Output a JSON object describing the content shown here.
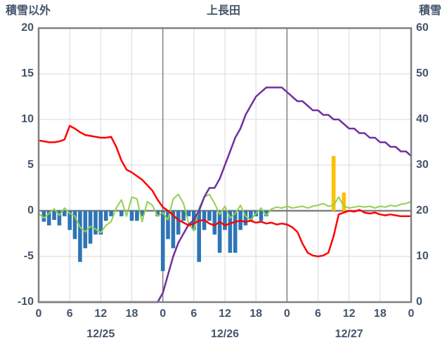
{
  "header": {
    "left_axis_title": "積雪以外",
    "chart_title": "上長田",
    "right_axis_title": "積雪"
  },
  "chart_data": {
    "type": "combo-bar-line",
    "title": "上長田",
    "hours_total": 72,
    "x_tick_step_hours": 6,
    "x_tick_label_rule": "hour-of-day (0,6,12,18)",
    "date_labels": [
      "12/25",
      "12/26",
      "12/27"
    ],
    "left_axis": {
      "title": "積雪以外",
      "min": -10,
      "max": 20,
      "step": 5,
      "tick_labels": [
        "20",
        "15",
        "10",
        "5",
        "0",
        "-5",
        "-10"
      ]
    },
    "right_axis": {
      "title": "積雪",
      "min": 0,
      "max": 60,
      "step": 10,
      "tick_labels": [
        "60",
        "50",
        "40",
        "30",
        "20",
        "10",
        "0"
      ]
    },
    "grid": {
      "minor_color": "#D9D9D9",
      "major_color": "#808080",
      "zero_line_color": "#808080",
      "border_color": "#808080",
      "text_color": "#44546A"
    },
    "series": [
      {
        "name": "blue_bars",
        "type": "bar",
        "axis": "left",
        "color": "#2E75B6",
        "values": [
          0,
          -1.2,
          -1.6,
          -1.0,
          -1.6,
          -0.6,
          -2.1,
          -3.1,
          -5.6,
          -4.1,
          -3.6,
          -2.6,
          -2.6,
          -1.1,
          -0.6,
          0,
          -0.6,
          0,
          -1.1,
          -1.1,
          -0.6,
          0,
          0,
          -0.6,
          -6.6,
          -3.1,
          -4.1,
          -2.6,
          -1.1,
          -0.6,
          -2.1,
          -5.6,
          -2.1,
          -1.1,
          -2.6,
          -4.6,
          -2.1,
          -4.6,
          -4.6,
          -2.1,
          -1.6,
          -1.1,
          -0.6,
          -1.1,
          -0.6,
          0,
          0,
          0,
          0,
          0,
          0,
          0,
          0,
          0,
          0,
          0,
          0,
          0,
          0,
          0,
          0,
          0,
          0,
          0,
          0,
          0,
          0,
          0,
          0,
          0,
          0,
          0,
          0
        ]
      },
      {
        "name": "yellow_bars",
        "type": "bar",
        "axis": "left",
        "color": "#FFC000",
        "values": [
          0,
          0,
          0,
          0,
          0,
          0,
          0,
          0,
          0,
          0,
          0,
          0,
          0,
          0,
          0,
          0,
          0,
          0,
          0,
          0,
          0,
          0,
          0,
          0,
          0,
          0,
          0,
          0,
          0,
          0,
          0,
          0,
          0,
          0,
          0,
          0,
          0,
          0,
          0,
          0,
          0,
          0,
          0,
          0,
          0,
          0,
          0,
          0,
          0,
          0,
          0,
          0,
          0,
          0,
          0,
          0,
          0,
          6.0,
          0,
          2.0,
          0,
          0,
          0,
          0,
          0,
          0,
          0,
          0,
          0,
          0,
          0,
          0,
          0
        ]
      },
      {
        "name": "green_line",
        "type": "line",
        "axis": "left",
        "color": "#92D050",
        "values": [
          -0.3,
          -0.8,
          -0.3,
          0.2,
          -0.5,
          0.3,
          -0.3,
          -0.6,
          -1.8,
          -2.3,
          -1.7,
          -2.0,
          -2.4,
          -1.6,
          -1.2,
          0.3,
          1.2,
          -0.6,
          1.5,
          1.3,
          -1.2,
          1.0,
          0.6,
          -0.6,
          -0.2,
          -1.0,
          1.3,
          1.8,
          0.8,
          -1.4,
          -2.2,
          0.3,
          1.5,
          1.8,
          0.8,
          -0.4,
          0.5,
          -0.8,
          -0.3,
          0.6,
          -0.6,
          -1.0,
          -0.3,
          0.3,
          -0.5,
          0.2,
          0.4,
          0.3,
          0.5,
          0.3,
          0.4,
          0.5,
          0.3,
          0.5,
          0.6,
          0.8,
          0.5,
          0.6,
          1.5,
          0.5,
          0.3,
          0.4,
          0.5,
          0.4,
          0.5,
          0.3,
          0.5,
          0.4,
          0.6,
          0.5,
          0.7,
          0.8,
          1.0
        ]
      },
      {
        "name": "purple_line",
        "type": "line",
        "axis": "right",
        "color": "#7030A0",
        "values": [
          0,
          0,
          0,
          0,
          0,
          0,
          0,
          0,
          0,
          0,
          0,
          0,
          0,
          0,
          0,
          0,
          0,
          0,
          0,
          0,
          0,
          0,
          0,
          0,
          2,
          6,
          10,
          13,
          15,
          17,
          18,
          20,
          23,
          25,
          25,
          27,
          30,
          33,
          36,
          38,
          41,
          43,
          45,
          46,
          47,
          47,
          47,
          47,
          46,
          45,
          44,
          44,
          43,
          42,
          42,
          41,
          41,
          40,
          40,
          39,
          38,
          38,
          37,
          37,
          36,
          36,
          35,
          35,
          34,
          34,
          33,
          33,
          32
        ]
      },
      {
        "name": "red_line",
        "type": "line",
        "axis": "left",
        "color": "#FF0000",
        "values": [
          7.7,
          7.6,
          7.5,
          7.5,
          7.6,
          7.8,
          9.3,
          9.0,
          8.6,
          8.3,
          8.2,
          8.1,
          8.0,
          8.0,
          8.1,
          7.0,
          5.5,
          4.5,
          4.2,
          3.8,
          3.4,
          2.8,
          2.2,
          1.2,
          0.4,
          0.0,
          -0.5,
          -1.0,
          -1.3,
          -1.6,
          -1.4,
          -1.1,
          -1.0,
          -1.4,
          -1.6,
          -1.2,
          -1.6,
          -1.4,
          -1.2,
          -1.1,
          -1.2,
          -1.1,
          -1.3,
          -1.2,
          -1.4,
          -1.3,
          -1.5,
          -1.4,
          -1.5,
          -1.8,
          -2.3,
          -3.6,
          -4.6,
          -4.9,
          -5.0,
          -4.9,
          -4.6,
          -2.8,
          -0.4,
          -0.2,
          0.0,
          -0.1,
          0.1,
          -0.2,
          -0.3,
          -0.2,
          -0.4,
          -0.5,
          -0.4,
          -0.5,
          -0.6,
          -0.6,
          -0.6
        ]
      }
    ],
    "legend": "none"
  }
}
